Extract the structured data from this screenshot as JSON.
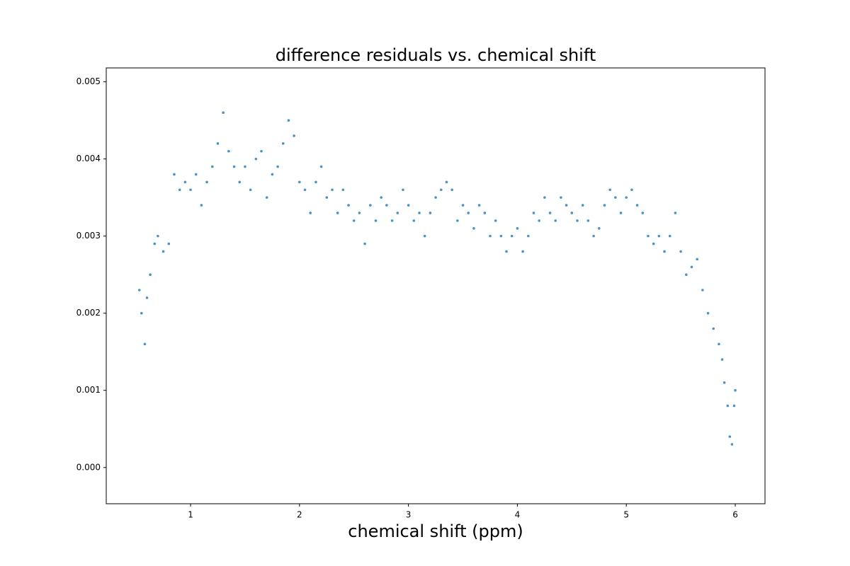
{
  "chart_data": {
    "type": "scatter",
    "title": "difference residuals vs. chemical shift",
    "x_label": "chemical shift (ppm)",
    "xlim": [
      0.226,
      6.273
    ],
    "ylim": [
      -0.00047,
      0.00518
    ],
    "xticks": [
      1,
      2,
      3,
      4,
      5,
      6
    ],
    "yticks": [
      {
        "value": 0,
        "label": "0.000"
      },
      {
        "value": 0.001,
        "label": "0.001"
      },
      {
        "value": 0.002,
        "label": "0.002"
      },
      {
        "value": 0.003,
        "label": "0.003"
      },
      {
        "value": 0.004,
        "label": "0.004"
      },
      {
        "value": 0.005,
        "label": "0.005"
      }
    ],
    "color": "#1f77b4",
    "x": [
      0.53,
      0.55,
      0.58,
      0.6,
      0.63,
      0.67,
      0.7,
      0.75,
      0.8,
      0.85,
      0.9,
      0.95,
      1.0,
      1.05,
      1.1,
      1.15,
      1.2,
      1.25,
      1.3,
      1.35,
      1.4,
      1.45,
      1.5,
      1.55,
      1.6,
      1.65,
      1.7,
      1.75,
      1.8,
      1.85,
      1.9,
      1.95,
      2.0,
      2.05,
      2.1,
      2.15,
      2.2,
      2.25,
      2.3,
      2.35,
      2.4,
      2.45,
      2.5,
      2.55,
      2.6,
      2.65,
      2.7,
      2.75,
      2.8,
      2.85,
      2.9,
      2.95,
      3.0,
      3.05,
      3.1,
      3.15,
      3.2,
      3.25,
      3.3,
      3.35,
      3.4,
      3.45,
      3.5,
      3.55,
      3.6,
      3.65,
      3.7,
      3.75,
      3.8,
      3.85,
      3.9,
      3.95,
      4.0,
      4.05,
      4.1,
      4.15,
      4.2,
      4.25,
      4.3,
      4.35,
      4.4,
      4.45,
      4.5,
      4.55,
      4.6,
      4.65,
      4.7,
      4.75,
      4.8,
      4.85,
      4.9,
      4.95,
      5.0,
      5.05,
      5.1,
      5.15,
      5.2,
      5.25,
      5.3,
      5.35,
      5.4,
      5.45,
      5.5,
      5.55,
      5.6,
      5.65,
      5.7,
      5.75,
      5.8,
      5.85,
      5.88,
      5.9,
      5.93,
      5.95,
      5.97,
      5.99,
      6.0
    ],
    "values": [
      0.0023,
      0.002,
      0.0016,
      0.0022,
      0.0025,
      0.0029,
      0.003,
      0.0028,
      0.0029,
      0.0038,
      0.0036,
      0.0037,
      0.0036,
      0.0038,
      0.0034,
      0.0037,
      0.0039,
      0.0042,
      0.0046,
      0.0041,
      0.0039,
      0.0037,
      0.0039,
      0.0036,
      0.004,
      0.0041,
      0.0035,
      0.0038,
      0.0039,
      0.0042,
      0.0045,
      0.0043,
      0.0037,
      0.0036,
      0.0033,
      0.0037,
      0.0039,
      0.0035,
      0.0036,
      0.0033,
      0.0036,
      0.0034,
      0.0032,
      0.0033,
      0.0029,
      0.0034,
      0.0032,
      0.0035,
      0.0034,
      0.0032,
      0.0033,
      0.0036,
      0.0034,
      0.0032,
      0.0033,
      0.003,
      0.0033,
      0.0035,
      0.0036,
      0.0037,
      0.0036,
      0.0032,
      0.0034,
      0.0033,
      0.0031,
      0.0034,
      0.0033,
      0.003,
      0.0032,
      0.003,
      0.0028,
      0.003,
      0.0031,
      0.0028,
      0.003,
      0.0033,
      0.0032,
      0.0035,
      0.0033,
      0.0032,
      0.0035,
      0.0034,
      0.0033,
      0.0032,
      0.0034,
      0.0032,
      0.003,
      0.0031,
      0.0034,
      0.0036,
      0.0035,
      0.0033,
      0.0035,
      0.0036,
      0.0034,
      0.0033,
      0.003,
      0.0029,
      0.003,
      0.0028,
      0.003,
      0.0033,
      0.0028,
      0.0025,
      0.0026,
      0.0027,
      0.0023,
      0.002,
      0.0018,
      0.0016,
      0.0014,
      0.0011,
      0.0008,
      0.0004,
      0.0003,
      0.0008,
      0.001
    ]
  }
}
